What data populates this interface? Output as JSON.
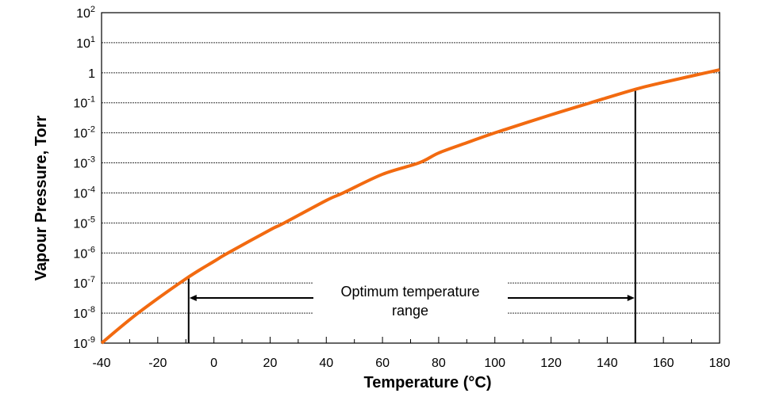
{
  "chart_data": {
    "type": "line",
    "title": "",
    "xlabel": "Temperature (°C)",
    "ylabel": "Vapour Pressure, Torr",
    "xlim": [
      -40,
      180
    ],
    "ylim": [
      1e-09,
      100
    ],
    "y_scale": "log",
    "grid": "horizontal dashed at each decade",
    "x_ticks": [
      "-40",
      "-20",
      "0",
      "20",
      "40",
      "60",
      "80",
      "100",
      "120",
      "140",
      "160",
      "180"
    ],
    "x_tick_values": [
      -40,
      -20,
      0,
      20,
      40,
      60,
      80,
      100,
      120,
      140,
      160,
      180
    ],
    "y_ticks": [
      {
        "base": "10",
        "exp": "2",
        "value": 100
      },
      {
        "base": "10",
        "exp": "1",
        "value": 10
      },
      {
        "base": "1",
        "exp": "",
        "value": 1
      },
      {
        "base": "10",
        "exp": "-1",
        "value": 0.1
      },
      {
        "base": "10",
        "exp": "-2",
        "value": 0.01
      },
      {
        "base": "10",
        "exp": "-3",
        "value": 0.001
      },
      {
        "base": "10",
        "exp": "-4",
        "value": 0.0001
      },
      {
        "base": "10",
        "exp": "-5",
        "value": 1e-05
      },
      {
        "base": "10",
        "exp": "-6",
        "value": 1e-06
      },
      {
        "base": "10",
        "exp": "-7",
        "value": 1e-07
      },
      {
        "base": "10",
        "exp": "-8",
        "value": 1e-08
      },
      {
        "base": "10",
        "exp": "-9",
        "value": 1e-09
      }
    ],
    "series": [
      {
        "color": "#f26a10",
        "x": [
          -40,
          -27,
          -10,
          0,
          5,
          20,
          25,
          40,
          46,
          60,
          73,
          80,
          90,
          100,
          120,
          134,
          150,
          160,
          180
        ],
        "log10_y": [
          -9,
          -8,
          -6.86,
          -6.28,
          -6,
          -5.23,
          -5,
          -4.25,
          -4,
          -3.38,
          -3,
          -2.67,
          -2.33,
          -2,
          -1.4,
          -1,
          -0.55,
          -0.32,
          0.1
        ]
      }
    ],
    "annotations": {
      "range_text_line1": "Optimum temperature",
      "range_text_line2": "range",
      "range_start": -9,
      "range_end": 150
    }
  }
}
